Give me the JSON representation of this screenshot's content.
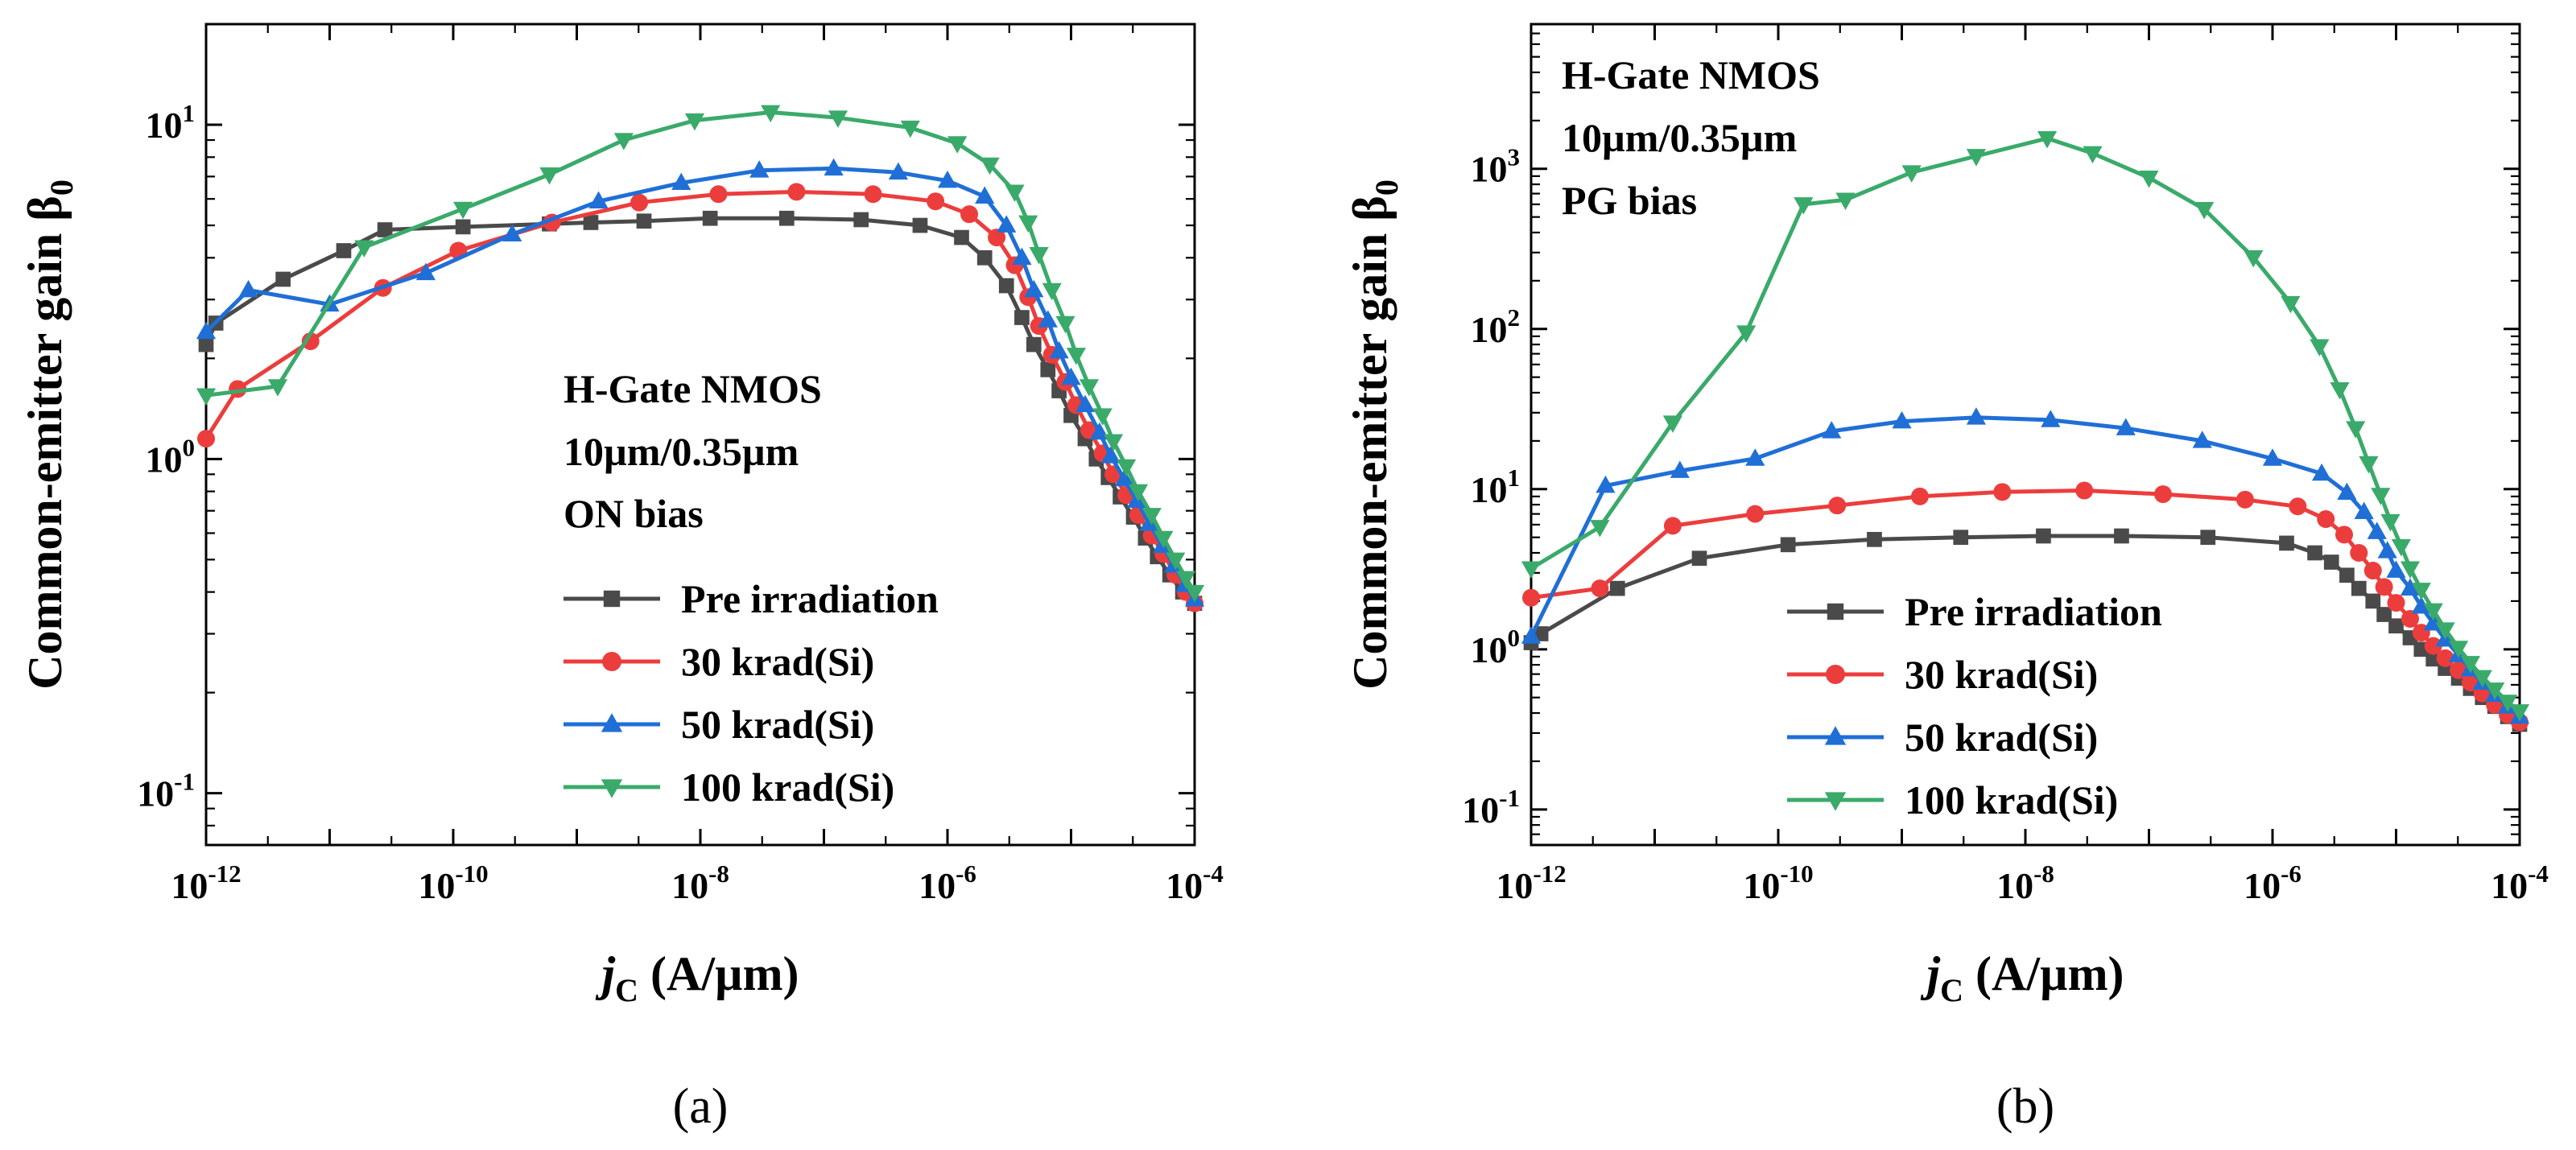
{
  "chart_data": [
    {
      "type": "line",
      "panel": "a",
      "caption": "(a)",
      "title": "",
      "xlabel_main": "j",
      "xlabel_sub": "C",
      "xlabel_rest": " (A/µm)",
      "ylabel": "Common-emitter gain β",
      "ylabel_sub": "0",
      "xscale": "log",
      "yscale": "log",
      "xlim": [
        1e-12,
        0.0001
      ],
      "ylim": [
        0.07,
        20
      ],
      "x_ticks": [
        {
          "base": "10",
          "exp": "-12"
        },
        {
          "base": "10",
          "exp": "-10"
        },
        {
          "base": "10",
          "exp": "-8"
        },
        {
          "base": "10",
          "exp": "-6"
        },
        {
          "base": "10",
          "exp": "-4"
        }
      ],
      "y_ticks": [
        {
          "base": "10",
          "exp": "-1"
        },
        {
          "base": "10",
          "exp": "0"
        },
        {
          "base": "10",
          "exp": "1"
        }
      ],
      "annotation": [
        "H-Gate NMOS",
        "10µm/0.35µm",
        "ON bias"
      ],
      "legend_position": "center-left",
      "series": [
        {
          "name": "Pre irradiation",
          "color": "#4a4a4a",
          "marker": "square",
          "points": [
            [
              1e-12,
              2.2
            ],
            [
              1.2e-12,
              2.55
            ],
            [
              4.2e-12,
              3.45
            ],
            [
              1.3e-11,
              4.2
            ],
            [
              2.8e-11,
              4.85
            ],
            [
              1.2e-10,
              4.95
            ],
            [
              6e-10,
              5.05
            ],
            [
              1.3e-09,
              5.1
            ],
            [
              3.5e-09,
              5.15
            ],
            [
              1.2e-08,
              5.25
            ],
            [
              5e-08,
              5.25
            ],
            [
              2e-07,
              5.2
            ],
            [
              6e-07,
              5.0
            ],
            [
              1.3e-06,
              4.6
            ],
            [
              2e-06,
              4.0
            ],
            [
              3e-06,
              3.3
            ],
            [
              4e-06,
              2.65
            ],
            [
              5e-06,
              2.2
            ],
            [
              6.5e-06,
              1.85
            ],
            [
              8e-06,
              1.6
            ],
            [
              1e-05,
              1.35
            ],
            [
              1.3e-05,
              1.15
            ],
            [
              1.6e-05,
              1.0
            ],
            [
              2e-05,
              0.88
            ],
            [
              2.5e-05,
              0.77
            ],
            [
              3.2e-05,
              0.67
            ],
            [
              4e-05,
              0.58
            ],
            [
              5e-05,
              0.51
            ],
            [
              6.3e-05,
              0.45
            ],
            [
              8e-05,
              0.4
            ],
            [
              0.0001,
              0.37
            ]
          ]
        },
        {
          "name": "30 krad(Si)",
          "color": "#ec3d3d",
          "marker": "circle",
          "points": [
            [
              1e-12,
              1.15
            ],
            [
              1.8e-12,
              1.62
            ],
            [
              7e-12,
              2.25
            ],
            [
              2.7e-11,
              3.25
            ],
            [
              1.1e-10,
              4.2
            ],
            [
              6.3e-10,
              5.1
            ],
            [
              3.2e-09,
              5.85
            ],
            [
              1.4e-08,
              6.2
            ],
            [
              6e-08,
              6.3
            ],
            [
              2.5e-07,
              6.2
            ],
            [
              8e-07,
              5.9
            ],
            [
              1.5e-06,
              5.4
            ],
            [
              2.5e-06,
              4.6
            ],
            [
              3.5e-06,
              3.8
            ],
            [
              4.5e-06,
              3.05
            ],
            [
              5.5e-06,
              2.5
            ],
            [
              7e-06,
              2.05
            ],
            [
              9e-06,
              1.7
            ],
            [
              1.1e-05,
              1.45
            ],
            [
              1.4e-05,
              1.22
            ],
            [
              1.8e-05,
              1.04
            ],
            [
              2.2e-05,
              0.9
            ],
            [
              2.8e-05,
              0.78
            ],
            [
              3.5e-05,
              0.68
            ],
            [
              4.5e-05,
              0.59
            ],
            [
              5.6e-05,
              0.52
            ],
            [
              7e-05,
              0.45
            ],
            [
              8.5e-05,
              0.4
            ],
            [
              0.0001,
              0.37
            ]
          ]
        },
        {
          "name": "50 krad(Si)",
          "color": "#1f6fd6",
          "marker": "triangle-up",
          "points": [
            [
              1e-12,
              2.4
            ],
            [
              2.2e-12,
              3.2
            ],
            [
              1e-11,
              2.9
            ],
            [
              6e-11,
              3.6
            ],
            [
              3e-10,
              4.7
            ],
            [
              1.5e-09,
              5.9
            ],
            [
              7e-09,
              6.7
            ],
            [
              3e-08,
              7.3
            ],
            [
              1.2e-07,
              7.4
            ],
            [
              4e-07,
              7.2
            ],
            [
              1e-06,
              6.8
            ],
            [
              2e-06,
              6.1
            ],
            [
              3e-06,
              5.0
            ],
            [
              4e-06,
              4.0
            ],
            [
              5e-06,
              3.2
            ],
            [
              6.5e-06,
              2.6
            ],
            [
              8e-06,
              2.1
            ],
            [
              1e-05,
              1.75
            ],
            [
              1.3e-05,
              1.45
            ],
            [
              1.7e-05,
              1.2
            ],
            [
              2.1e-05,
              1.02
            ],
            [
              2.7e-05,
              0.87
            ],
            [
              3.4e-05,
              0.75
            ],
            [
              4.3e-05,
              0.64
            ],
            [
              5.5e-05,
              0.55
            ],
            [
              6.8e-05,
              0.48
            ],
            [
              8.4e-05,
              0.42
            ],
            [
              0.0001,
              0.38
            ]
          ]
        },
        {
          "name": "100 krad(Si)",
          "color": "#3aaa6a",
          "marker": "triangle-down",
          "points": [
            [
              1e-12,
              1.55
            ],
            [
              3.8e-12,
              1.65
            ],
            [
              1.9e-11,
              4.3
            ],
            [
              1.2e-10,
              5.6
            ],
            [
              6e-10,
              7.1
            ],
            [
              2.4e-09,
              9.0
            ],
            [
              9e-09,
              10.3
            ],
            [
              3.7e-08,
              10.9
            ],
            [
              1.3e-07,
              10.5
            ],
            [
              5e-07,
              9.8
            ],
            [
              1.2e-06,
              8.8
            ],
            [
              2.2e-06,
              7.6
            ],
            [
              3.5e-06,
              6.3
            ],
            [
              4.5e-06,
              5.1
            ],
            [
              5.5e-06,
              4.1
            ],
            [
              7e-06,
              3.2
            ],
            [
              9e-06,
              2.55
            ],
            [
              1.1e-05,
              2.05
            ],
            [
              1.4e-05,
              1.65
            ],
            [
              1.8e-05,
              1.35
            ],
            [
              2.2e-05,
              1.13
            ],
            [
              2.8e-05,
              0.95
            ],
            [
              3.5e-05,
              0.8
            ],
            [
              4.5e-05,
              0.68
            ],
            [
              5.6e-05,
              0.58
            ],
            [
              7e-05,
              0.5
            ],
            [
              8.5e-05,
              0.44
            ],
            [
              0.0001,
              0.4
            ]
          ]
        }
      ]
    },
    {
      "type": "line",
      "panel": "b",
      "caption": "(b)",
      "title": "",
      "xlabel_main": "j",
      "xlabel_sub": "C",
      "xlabel_rest": " (A/µm)",
      "ylabel": "Common-emitter gain β",
      "ylabel_sub": "0",
      "xscale": "log",
      "yscale": "log",
      "xlim": [
        1e-12,
        0.0001
      ],
      "ylim": [
        0.06,
        8000
      ],
      "x_ticks": [
        {
          "base": "10",
          "exp": "-12"
        },
        {
          "base": "10",
          "exp": "-10"
        },
        {
          "base": "10",
          "exp": "-8"
        },
        {
          "base": "10",
          "exp": "-6"
        },
        {
          "base": "10",
          "exp": "-4"
        }
      ],
      "y_ticks": [
        {
          "base": "10",
          "exp": "-1"
        },
        {
          "base": "10",
          "exp": "0"
        },
        {
          "base": "10",
          "exp": "1"
        },
        {
          "base": "10",
          "exp": "2"
        },
        {
          "base": "10",
          "exp": "3"
        }
      ],
      "annotation": [
        "H-Gate NMOS",
        "10µm/0.35µm",
        "PG bias"
      ],
      "legend_position": "bottom-center",
      "series": [
        {
          "name": "Pre irradiation",
          "color": "#4a4a4a",
          "marker": "square",
          "points": [
            [
              1e-12,
              1.1
            ],
            [
              1.2e-12,
              1.25
            ],
            [
              5e-12,
              2.4
            ],
            [
              2.3e-11,
              3.7
            ],
            [
              1.2e-10,
              4.5
            ],
            [
              6e-10,
              4.85
            ],
            [
              3e-09,
              5.0
            ],
            [
              1.4e-08,
              5.1
            ],
            [
              6e-08,
              5.1
            ],
            [
              3e-07,
              5.0
            ],
            [
              1.3e-06,
              4.6
            ],
            [
              2.2e-06,
              4.0
            ],
            [
              3e-06,
              3.5
            ],
            [
              4e-06,
              2.9
            ],
            [
              5e-06,
              2.4
            ],
            [
              6.5e-06,
              2.0
            ],
            [
              8e-06,
              1.65
            ],
            [
              1e-05,
              1.4
            ],
            [
              1.3e-05,
              1.18
            ],
            [
              1.6e-05,
              1.0
            ],
            [
              2e-05,
              0.87
            ],
            [
              2.5e-05,
              0.76
            ],
            [
              3.2e-05,
              0.66
            ],
            [
              4e-05,
              0.57
            ],
            [
              5e-05,
              0.5
            ],
            [
              6.3e-05,
              0.44
            ],
            [
              8e-05,
              0.38
            ],
            [
              0.0001,
              0.34
            ]
          ]
        },
        {
          "name": "30 krad(Si)",
          "color": "#ec3d3d",
          "marker": "circle",
          "points": [
            [
              1e-12,
              2.1
            ],
            [
              3.6e-12,
              2.4
            ],
            [
              1.4e-11,
              5.9
            ],
            [
              6.5e-11,
              7.0
            ],
            [
              3e-10,
              7.9
            ],
            [
              1.4e-09,
              9.0
            ],
            [
              6.5e-09,
              9.6
            ],
            [
              3e-08,
              9.8
            ],
            [
              1.3e-07,
              9.3
            ],
            [
              6e-07,
              8.6
            ],
            [
              1.6e-06,
              7.8
            ],
            [
              2.7e-06,
              6.5
            ],
            [
              3.8e-06,
              5.2
            ],
            [
              5e-06,
              4.0
            ],
            [
              6.5e-06,
              3.1
            ],
            [
              8e-06,
              2.45
            ],
            [
              1e-05,
              1.95
            ],
            [
              1.3e-05,
              1.55
            ],
            [
              1.6e-05,
              1.27
            ],
            [
              2e-05,
              1.05
            ],
            [
              2.5e-05,
              0.88
            ],
            [
              3.2e-05,
              0.74
            ],
            [
              4e-05,
              0.62
            ],
            [
              5e-05,
              0.53
            ],
            [
              6.3e-05,
              0.45
            ],
            [
              8e-05,
              0.39
            ],
            [
              0.0001,
              0.35
            ]
          ]
        },
        {
          "name": "50 krad(Si)",
          "color": "#1f6fd6",
          "marker": "triangle-up",
          "points": [
            [
              1e-12,
              1.2
            ],
            [
              4e-12,
              10.5
            ],
            [
              1.6e-11,
              13.0
            ],
            [
              6.5e-11,
              15.5
            ],
            [
              2.7e-10,
              23.0
            ],
            [
              1e-09,
              26.5
            ],
            [
              4e-09,
              28.0
            ],
            [
              1.6e-08,
              27.0
            ],
            [
              6.5e-08,
              24.0
            ],
            [
              2.7e-07,
              20.0
            ],
            [
              1e-06,
              15.5
            ],
            [
              2.5e-06,
              12.5
            ],
            [
              4e-06,
              9.5
            ],
            [
              5.5e-06,
              7.2
            ],
            [
              7e-06,
              5.4
            ],
            [
              8.5e-06,
              4.1
            ],
            [
              1e-05,
              3.1
            ],
            [
              1.3e-05,
              2.4
            ],
            [
              1.6e-05,
              1.85
            ],
            [
              2e-05,
              1.45
            ],
            [
              2.5e-05,
              1.15
            ],
            [
              3.2e-05,
              0.92
            ],
            [
              4e-05,
              0.75
            ],
            [
              5e-05,
              0.62
            ],
            [
              6.3e-05,
              0.52
            ],
            [
              8e-05,
              0.44
            ],
            [
              0.0001,
              0.38
            ]
          ]
        },
        {
          "name": "100 krad(Si)",
          "color": "#3aaa6a",
          "marker": "triangle-down",
          "points": [
            [
              1e-12,
              3.2
            ],
            [
              3.6e-12,
              5.8
            ],
            [
              1.4e-11,
              26.0
            ],
            [
              5.5e-11,
              95.0
            ],
            [
              1.6e-10,
              600.0
            ],
            [
              3.5e-10,
              640.0
            ],
            [
              1.2e-09,
              950.0
            ],
            [
              4e-09,
              1200.0
            ],
            [
              1.5e-08,
              1550.0
            ],
            [
              3.5e-08,
              1250.0
            ],
            [
              1e-07,
              880.0
            ],
            [
              2.8e-07,
              560.0
            ],
            [
              7e-07,
              280.0
            ],
            [
              1.4e-06,
              145.0
            ],
            [
              2.4e-06,
              78.0
            ],
            [
              3.5e-06,
              42.0
            ],
            [
              4.7e-06,
              24.0
            ],
            [
              6e-06,
              14.5
            ],
            [
              7.5e-06,
              9.2
            ],
            [
              9e-06,
              6.3
            ],
            [
              1.1e-05,
              4.4
            ],
            [
              1.3e-05,
              3.2
            ],
            [
              1.6e-05,
              2.35
            ],
            [
              2e-05,
              1.75
            ],
            [
              2.5e-05,
              1.33
            ],
            [
              3.2e-05,
              1.02
            ],
            [
              4e-05,
              0.82
            ],
            [
              5e-05,
              0.67
            ],
            [
              6.3e-05,
              0.56
            ],
            [
              8e-05,
              0.47
            ],
            [
              0.0001,
              0.41
            ]
          ]
        }
      ]
    }
  ]
}
